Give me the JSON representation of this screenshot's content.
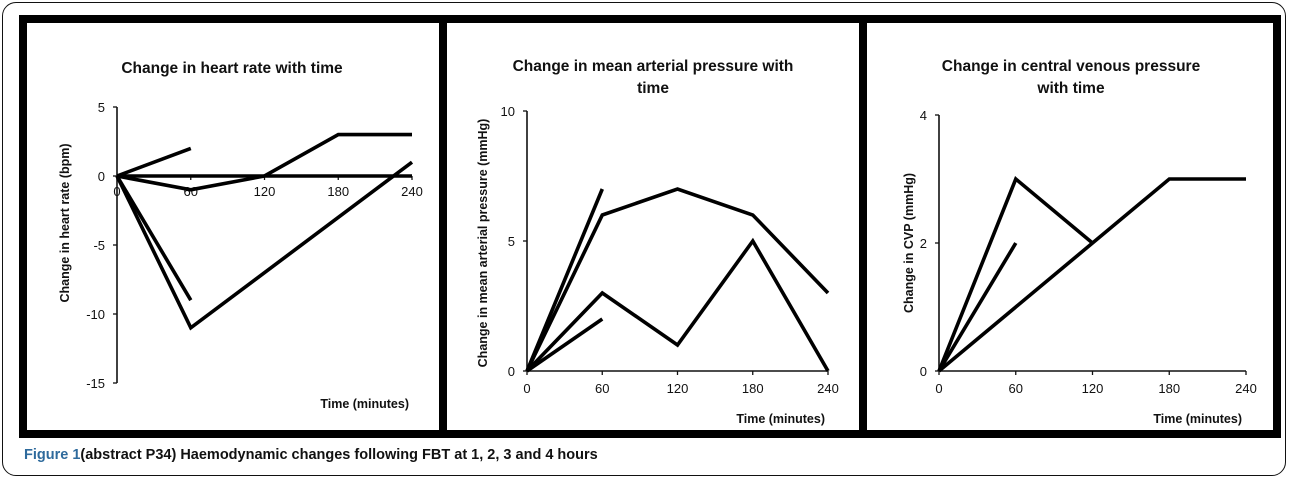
{
  "caption": {
    "label": "Figure 1",
    "text": "(abstract P34) Haemodynamic changes following FBT at 1, 2, 3 and 4 hours"
  },
  "chart_data": [
    {
      "type": "line",
      "title": "Change in heart rate with time",
      "xlabel": "Time (minutes)",
      "ylabel": "Change in heart rate  (bpm)",
      "x_ticks": [
        0,
        60,
        120,
        180,
        240
      ],
      "y_ticks": [
        5,
        0,
        -5,
        -10,
        -15
      ],
      "xlim": [
        0,
        240
      ],
      "ylim": [
        -15,
        5
      ],
      "grid": false,
      "series": [
        {
          "x": [
            0,
            60
          ],
          "y": [
            0,
            2
          ]
        },
        {
          "x": [
            0,
            120,
            180,
            240
          ],
          "y": [
            0,
            0,
            3,
            3
          ]
        },
        {
          "x": [
            0,
            60,
            120,
            240
          ],
          "y": [
            0,
            -1,
            0,
            0
          ]
        },
        {
          "x": [
            0,
            60
          ],
          "y": [
            0,
            -9
          ]
        },
        {
          "x": [
            0,
            60,
            240
          ],
          "y": [
            0,
            -11,
            1
          ]
        }
      ]
    },
    {
      "type": "line",
      "title": "Change in mean arterial pressure with time",
      "xlabel": "Time (minutes)",
      "ylabel": "Change in mean arterial pressure (mmHg)",
      "x_ticks": [
        0,
        60,
        120,
        180,
        240
      ],
      "y_ticks": [
        0,
        5,
        10
      ],
      "xlim": [
        0,
        240
      ],
      "ylim": [
        0,
        10
      ],
      "grid": false,
      "series": [
        {
          "x": [
            0,
            60
          ],
          "y": [
            0,
            7
          ]
        },
        {
          "x": [
            0,
            60,
            120,
            180,
            240
          ],
          "y": [
            0,
            6,
            7,
            6,
            3
          ]
        },
        {
          "x": [
            0,
            60,
            120,
            180,
            240
          ],
          "y": [
            0,
            3,
            1,
            5,
            0
          ]
        },
        {
          "x": [
            0,
            60
          ],
          "y": [
            0,
            2
          ]
        }
      ]
    },
    {
      "type": "line",
      "title": "Change in central venous pressure with time",
      "xlabel": "Time (minutes)",
      "ylabel": "Change in CVP  (mmHg)",
      "x_ticks": [
        0,
        60,
        120,
        180,
        240
      ],
      "y_ticks": [
        0,
        2,
        4
      ],
      "xlim": [
        0,
        240
      ],
      "ylim": [
        0,
        4
      ],
      "grid": false,
      "series": [
        {
          "x": [
            0,
            60,
            120
          ],
          "y": [
            0,
            3,
            2
          ]
        },
        {
          "x": [
            0,
            60
          ],
          "y": [
            0,
            2
          ]
        },
        {
          "x": [
            0,
            180,
            240
          ],
          "y": [
            0,
            3,
            3
          ]
        }
      ]
    }
  ]
}
